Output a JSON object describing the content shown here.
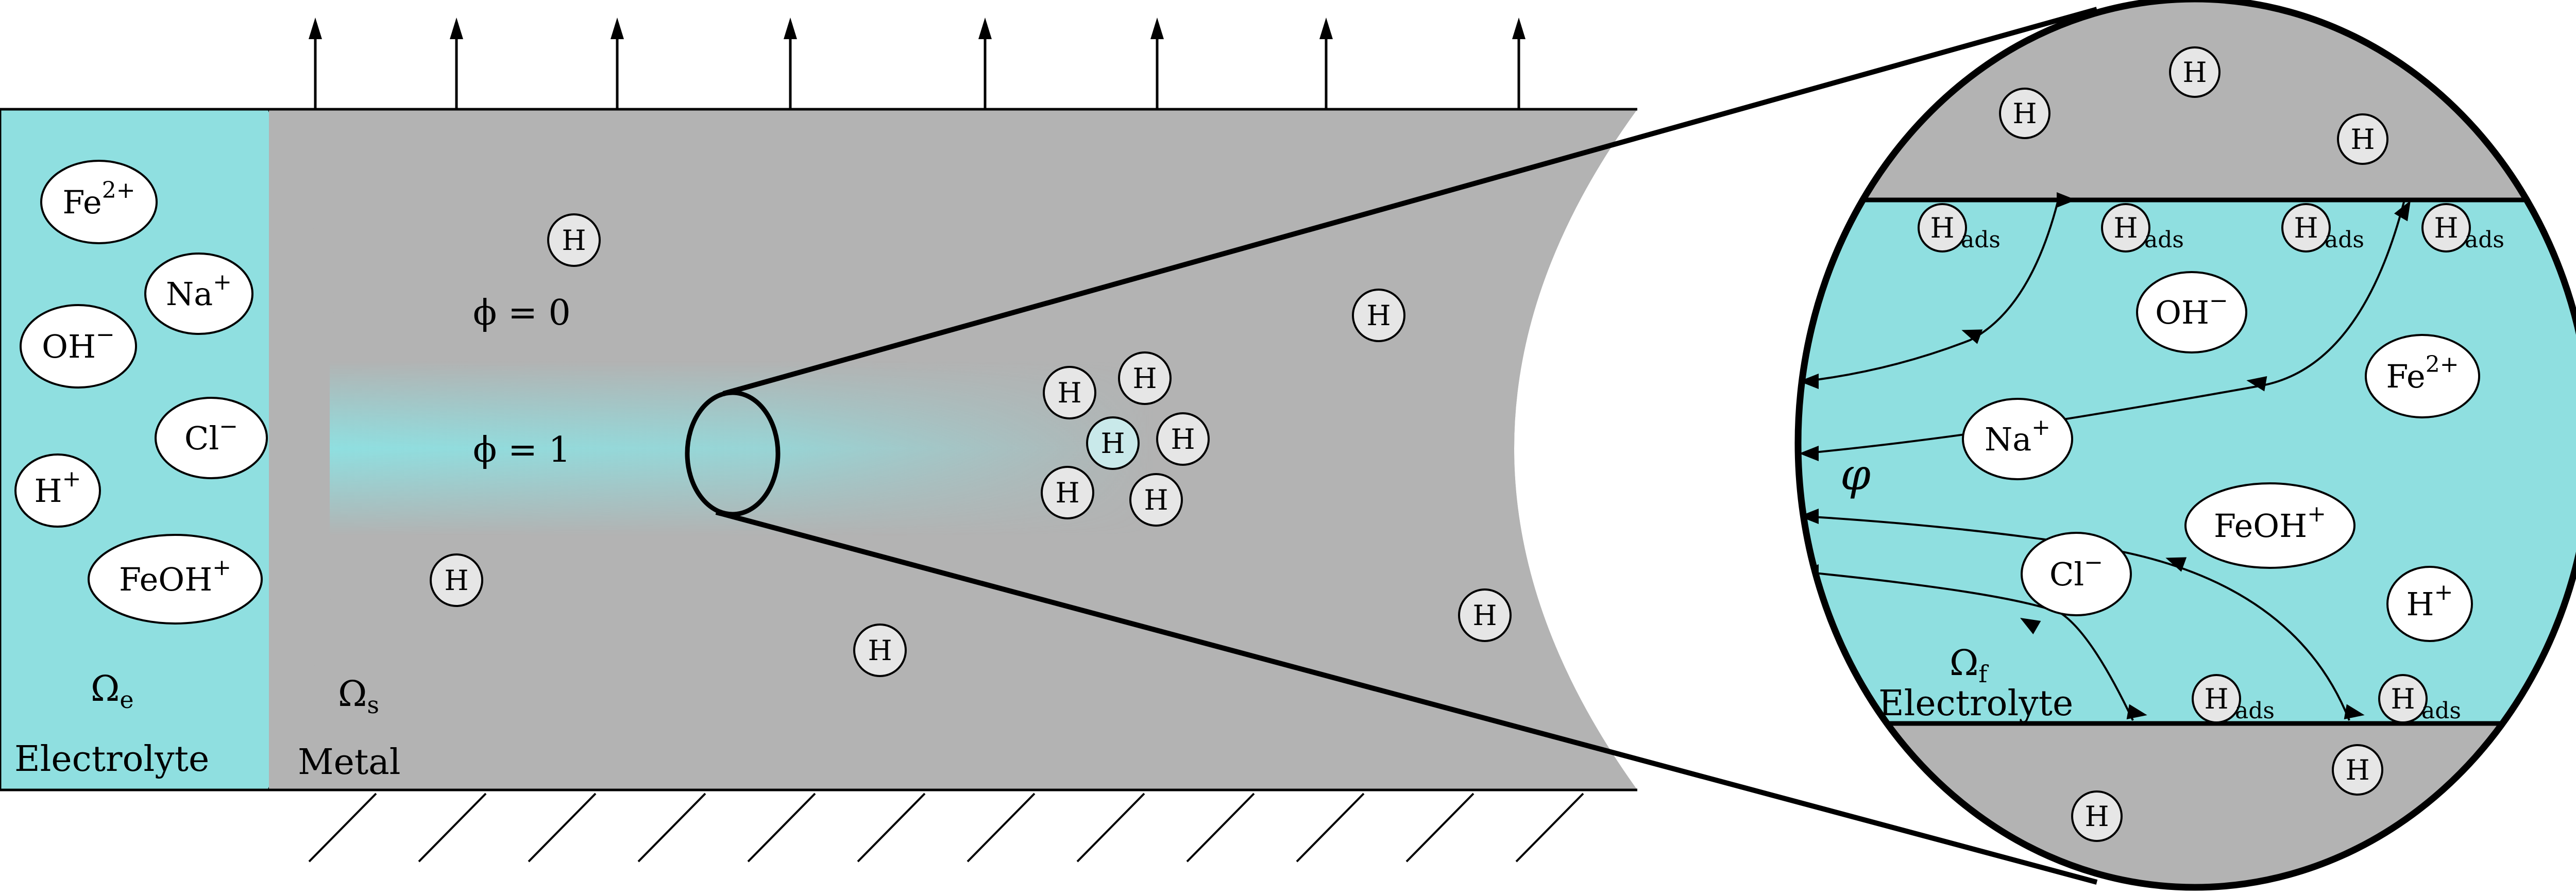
{
  "colors": {
    "electrolyte": "#8fdfe0",
    "metal": "#b3b3b3",
    "hydrogen_fill": "#e6e6e6",
    "stroke": "#000000"
  },
  "hydrogen_symbol": "H",
  "ads_subscript": "ads",
  "electrolyte_domain": {
    "omega_symbol": "Ω",
    "omega_subscript": "e",
    "label": "Electrolyte",
    "ions": [
      {
        "base": "Fe",
        "charge": "2+"
      },
      {
        "base": "Na",
        "charge": "+"
      },
      {
        "base": "OH",
        "charge": "−"
      },
      {
        "base": "Cl",
        "charge": "−"
      },
      {
        "base": "H",
        "charge": "+"
      },
      {
        "base": "FeOH",
        "charge": "+"
      }
    ]
  },
  "metal_domain": {
    "omega_symbol": "Ω",
    "omega_subscript": "s",
    "label": "Metal",
    "phi_intact": "ϕ = 0",
    "phi_crack": "ϕ = 1"
  },
  "zoom_view": {
    "omega_symbol": "Ω",
    "omega_subscript": "f",
    "label": "Electrolyte",
    "potential_symbol": "φ",
    "ions": [
      {
        "base": "OH",
        "charge": "−"
      },
      {
        "base": "Fe",
        "charge": "2+"
      },
      {
        "base": "Na",
        "charge": "+"
      },
      {
        "base": "FeOH",
        "charge": "+"
      },
      {
        "base": "Cl",
        "charge": "−"
      },
      {
        "base": "H",
        "charge": "+"
      }
    ]
  }
}
